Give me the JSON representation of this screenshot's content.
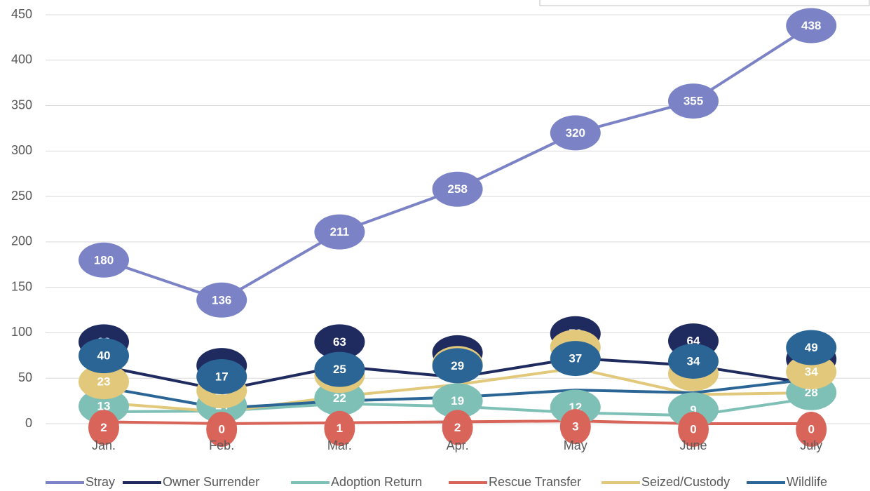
{
  "chart_data": {
    "type": "line",
    "categories": [
      "Jan.",
      "Feb.",
      "Mar.",
      "Apr.",
      "May",
      "June",
      "July"
    ],
    "series": [
      {
        "name": "Stray",
        "color": "#7b83c6",
        "values": [
          180,
          136,
          211,
          258,
          320,
          355,
          438
        ]
      },
      {
        "name": "Owner Surrender",
        "color": "#1f2a5e",
        "values": [
          63,
          37,
          63,
          51,
          72,
          64,
          44
        ]
      },
      {
        "name": "Adoption Return",
        "color": "#7fc0b6",
        "values": [
          13,
          14,
          22,
          19,
          12,
          9,
          28
        ]
      },
      {
        "name": "Rescue Transfer",
        "color": "#d8645a",
        "values": [
          2,
          0,
          1,
          2,
          3,
          0,
          0
        ]
      },
      {
        "name": "Seized/Custody",
        "color": "#e2c87a",
        "values": [
          23,
          13,
          30,
          43,
          61,
          32,
          34
        ]
      },
      {
        "name": "Wildlife",
        "color": "#2a6596",
        "values": [
          40,
          17,
          25,
          29,
          37,
          34,
          49
        ]
      }
    ],
    "ylim": [
      0,
      450
    ],
    "yticks": [
      0,
      50,
      100,
      150,
      200,
      250,
      300,
      350,
      400,
      450
    ],
    "grid": true,
    "legend": "bottom"
  }
}
